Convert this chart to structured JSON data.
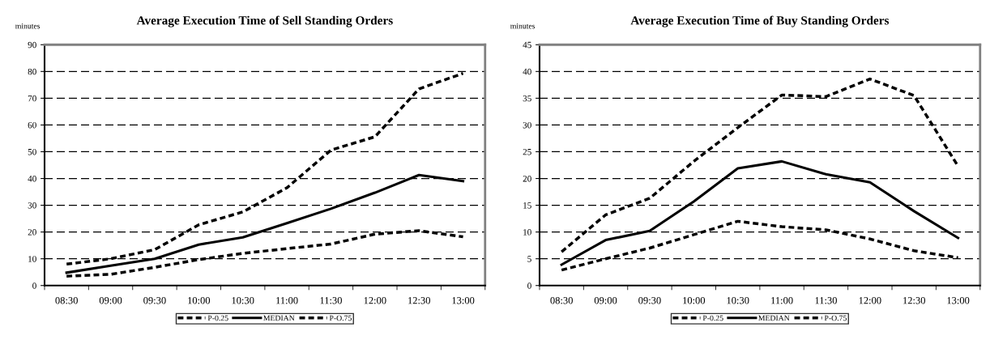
{
  "chart_data": [
    {
      "type": "line",
      "title": "Average Execution Time of Sell Standing Orders",
      "ylabel": "minutes",
      "categories": [
        "08:30",
        "09:00",
        "09:30",
        "10:00",
        "10:30",
        "11:00",
        "11:30",
        "12:00",
        "12:30",
        "13:00"
      ],
      "ylim": [
        0,
        90
      ],
      "yticks": [
        0,
        10,
        20,
        30,
        40,
        50,
        60,
        70,
        80,
        90
      ],
      "grid": "y",
      "legend": "bottom",
      "marker": "none",
      "series": [
        {
          "name": "P-0.25",
          "color": "#000000",
          "line_style": "dashed",
          "values": [
            3.5,
            4.2,
            6.8,
            9.7,
            12,
            13.8,
            15.5,
            19.2,
            20.5,
            18.2
          ]
        },
        {
          "name": "MEDIAN",
          "color": "#000000",
          "line_style": "solid",
          "values": [
            4.8,
            7.4,
            10,
            15.3,
            18,
            23.3,
            28.7,
            34.7,
            41.3,
            39
          ]
        },
        {
          "name": "P-O.75",
          "color": "#000000",
          "line_style": "dashed",
          "values": [
            8,
            10,
            13.4,
            22.7,
            27.5,
            36.5,
            50.6,
            55.6,
            73.5,
            79.3
          ]
        }
      ]
    },
    {
      "type": "line",
      "title": "Average Execution Time of Buy Standing Orders",
      "ylabel": "minutes",
      "categories": [
        "08:30",
        "09:00",
        "09:30",
        "10:00",
        "10:30",
        "11:00",
        "11:30",
        "12:00",
        "12:30",
        "13:00"
      ],
      "ylim": [
        0,
        45
      ],
      "yticks": [
        0,
        5,
        10,
        15,
        20,
        25,
        30,
        35,
        40,
        45
      ],
      "grid": "y",
      "legend": "bottom",
      "marker": "none",
      "series": [
        {
          "name": "P-0.25",
          "color": "#000000",
          "line_style": "dashed",
          "values": [
            2.9,
            5,
            7,
            9.5,
            12,
            11,
            10.4,
            8.7,
            6.5,
            5.2
          ]
        },
        {
          "name": "MEDIAN",
          "color": "#000000",
          "line_style": "solid",
          "values": [
            3.9,
            8.5,
            10.2,
            15.7,
            21.9,
            23.2,
            20.8,
            19.3,
            13.9,
            8.9
          ]
        },
        {
          "name": "P-O.75",
          "color": "#000000",
          "line_style": "dashed",
          "values": [
            6.3,
            13.2,
            16.3,
            23.2,
            29.5,
            35.6,
            35.3,
            38.6,
            35.5,
            22.3
          ]
        }
      ]
    }
  ]
}
